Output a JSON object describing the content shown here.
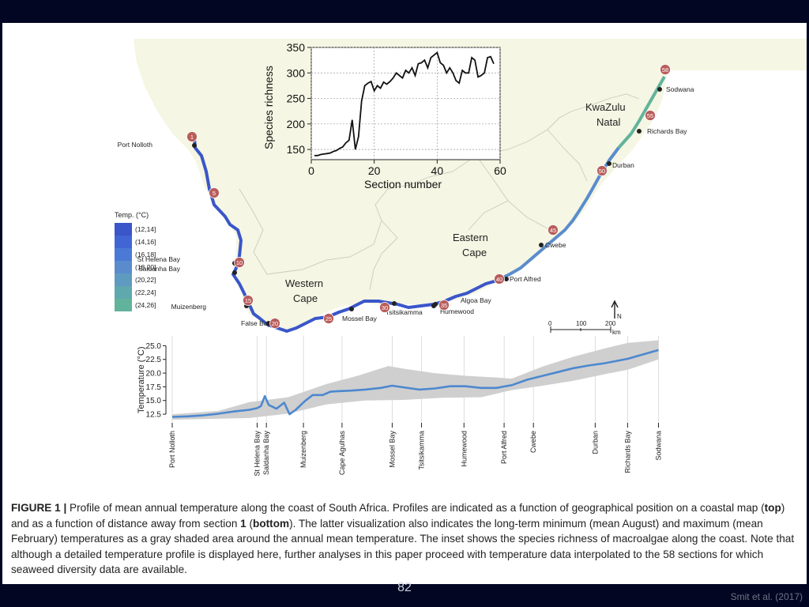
{
  "slide": {
    "page_number": "82",
    "credit": "Smit et al. (2017)"
  },
  "map": {
    "regions": {
      "western_cape": [
        "Western",
        "Cape"
      ],
      "eastern_cape": [
        "Eastern",
        "Cape"
      ],
      "kwazulu_natal": [
        "KwaZulu",
        "Natal"
      ]
    },
    "places": [
      {
        "name": "Port Nolloth"
      },
      {
        "name": "St Helena Bay"
      },
      {
        "name": "Saldanha Bay"
      },
      {
        "name": "Muizenberg"
      },
      {
        "name": "False Bay"
      },
      {
        "name": "Mossel Bay"
      },
      {
        "name": "Tsitsikamma"
      },
      {
        "name": "Algoa Bay"
      },
      {
        "name": "Humewood"
      },
      {
        "name": "Port Alfred"
      },
      {
        "name": "Cwebe"
      },
      {
        "name": "Durban"
      },
      {
        "name": "Richards Bay"
      },
      {
        "name": "Sodwana"
      }
    ],
    "section_markers": [
      "1",
      "5",
      "10",
      "15",
      "20",
      "25",
      "30",
      "35",
      "40",
      "45",
      "50",
      "55",
      "58"
    ],
    "legend": {
      "title": "Temp. (°C)",
      "items": [
        {
          "label": "(12,14]",
          "color": "#3a56c9"
        },
        {
          "label": "(14,16]",
          "color": "#4166d4"
        },
        {
          "label": "(16,18]",
          "color": "#4b7ad6"
        },
        {
          "label": "(18,20]",
          "color": "#5a8ccd"
        },
        {
          "label": "(20,22]",
          "color": "#5f9bc0"
        },
        {
          "label": "(22,24]",
          "color": "#5fa8ae"
        },
        {
          "label": "(24,26]",
          "color": "#62b39c"
        }
      ]
    },
    "scale": {
      "ticks": [
        "0",
        "100",
        "200"
      ],
      "unit": "km",
      "north": "N"
    }
  },
  "chart_data": [
    {
      "type": "line",
      "title": "",
      "xlabel": "Section number",
      "ylabel": "Species richness",
      "xlim": [
        0,
        60
      ],
      "ylim": [
        130,
        350
      ],
      "xticks": [
        "0",
        "20",
        "40",
        "60"
      ],
      "yticks": [
        "150",
        "200",
        "250",
        "300",
        "350"
      ],
      "grid": true,
      "x": [
        1,
        2,
        3,
        4,
        5,
        6,
        7,
        8,
        9,
        10,
        11,
        12,
        13,
        14,
        15,
        16,
        17,
        18,
        19,
        20,
        21,
        22,
        23,
        24,
        25,
        26,
        27,
        28,
        29,
        30,
        31,
        32,
        33,
        34,
        35,
        36,
        37,
        38,
        39,
        40,
        41,
        42,
        43,
        44,
        45,
        46,
        47,
        48,
        49,
        50,
        51,
        52,
        53,
        54,
        55,
        56,
        57,
        58
      ],
      "series": [
        {
          "values": [
            138,
            138,
            140,
            141,
            142,
            143,
            146,
            148,
            152,
            155,
            163,
            168,
            208,
            150,
            175,
            245,
            275,
            280,
            283,
            265,
            275,
            270,
            282,
            278,
            283,
            290,
            300,
            295,
            290,
            305,
            300,
            310,
            295,
            318,
            320,
            325,
            310,
            330,
            335,
            340,
            320,
            315,
            300,
            310,
            300,
            285,
            280,
            305,
            300,
            300,
            330,
            325,
            292,
            295,
            300,
            330,
            332,
            318
          ]
        }
      ]
    },
    {
      "type": "line",
      "title": "",
      "xlabel": "",
      "ylabel": "Temperature (°C)",
      "xlim": [
        0,
        650
      ],
      "ylim": [
        11.5,
        26.5
      ],
      "yticks": [
        "12.5",
        "15.0",
        "17.5",
        "20.0",
        "22.5",
        "25.0"
      ],
      "band_label": "long-term minimum (mean August) and maximum (mean February)",
      "station_ticks": [
        "Port Nolloth",
        "St Helena Bay",
        "Saldanha Bay",
        "Muizenberg",
        "Cape Agulhas",
        "Mossel Bay",
        "Tsitsikamma",
        "Humewood",
        "Port Alfred",
        "Cwebe",
        "Durban",
        "Richards Bay",
        "Sodwana"
      ],
      "station_x": [
        0,
        110,
        122,
        170,
        220,
        285,
        323,
        378,
        430,
        468,
        548,
        590,
        630
      ],
      "series": [
        {
          "values": [
            [
              0,
              12.0
            ],
            [
              20,
              12.1
            ],
            [
              40,
              12.3
            ],
            [
              60,
              12.6
            ],
            [
              80,
              13.0
            ],
            [
              100,
              13.3
            ],
            [
              110,
              13.6
            ],
            [
              115,
              14.0
            ],
            [
              120,
              15.8
            ],
            [
              125,
              14.2
            ],
            [
              135,
              13.5
            ],
            [
              145,
              14.6
            ],
            [
              152,
              12.5
            ],
            [
              160,
              13.3
            ],
            [
              172,
              14.9
            ],
            [
              182,
              16.0
            ],
            [
              195,
              16.0
            ],
            [
              205,
              16.6
            ],
            [
              215,
              16.7
            ],
            [
              230,
              16.8
            ],
            [
              250,
              17.0
            ],
            [
              270,
              17.3
            ],
            [
              285,
              17.7
            ],
            [
              300,
              17.4
            ],
            [
              320,
              17.0
            ],
            [
              340,
              17.2
            ],
            [
              360,
              17.6
            ],
            [
              380,
              17.6
            ],
            [
              400,
              17.3
            ],
            [
              420,
              17.3
            ],
            [
              440,
              17.8
            ],
            [
              460,
              18.8
            ],
            [
              480,
              19.5
            ],
            [
              500,
              20.2
            ],
            [
              520,
              20.9
            ],
            [
              540,
              21.4
            ],
            [
              560,
              21.8
            ],
            [
              590,
              22.6
            ],
            [
              630,
              24.2
            ]
          ]
        },
        {
          "values": [
            [
              0,
              11.5
            ],
            [
              100,
              11.8
            ],
            [
              150,
              12.6
            ],
            [
              200,
              14.3
            ],
            [
              250,
              15.0
            ],
            [
              300,
              15.1
            ],
            [
              350,
              15.5
            ],
            [
              400,
              15.6
            ],
            [
              440,
              16.9
            ],
            [
              480,
              17.7
            ],
            [
              520,
              18.6
            ],
            [
              560,
              19.8
            ],
            [
              590,
              20.6
            ],
            [
              630,
              22.5
            ]
          ]
        },
        {
          "values": [
            [
              0,
              12.5
            ],
            [
              60,
              13.1
            ],
            [
              100,
              14.7
            ],
            [
              150,
              15.6
            ],
            [
              200,
              18.0
            ],
            [
              240,
              19.5
            ],
            [
              280,
              21.3
            ],
            [
              300,
              20.8
            ],
            [
              340,
              20.0
            ],
            [
              380,
              19.5
            ],
            [
              420,
              19.2
            ],
            [
              440,
              19.0
            ],
            [
              480,
              21.2
            ],
            [
              520,
              23.0
            ],
            [
              560,
              24.5
            ],
            [
              590,
              25.5
            ],
            [
              630,
              26.0
            ]
          ]
        }
      ]
    }
  ],
  "caption": {
    "figure_label": "FIGURE 1 |",
    "text_1": " Profile of mean annual temperature along the coast of South Africa. Profiles are indicated as a function of geographical position on a coastal map (",
    "bold_top": "top",
    "text_2": ") and as a function of distance away from section ",
    "bold_one": "1",
    "text_3": " (",
    "bold_bottom": "bottom",
    "text_4": "). The latter visualization also indicates the long-term minimum (mean August) and maximum (mean February) temperatures as a gray shaded area around the annual mean temperature. The inset shows the species richness of macroalgae along the coast. Note that although a detailed temperature profile is displayed here, further analyses in this paper proceed with temperature data interpolated to the 58 sections for which seaweed diversity data are available."
  }
}
